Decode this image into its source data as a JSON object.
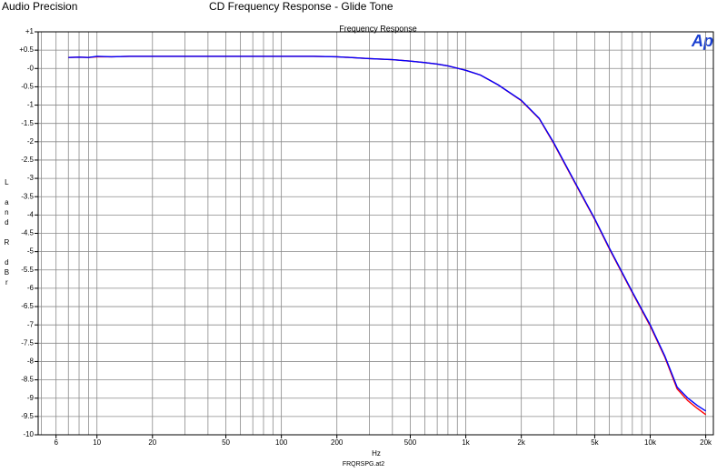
{
  "chart_data": {
    "type": "line",
    "header": "Audio Precision",
    "title": "CD Frequency Response - Glide Tone",
    "subtitle": "Frequency Response",
    "logo": "Ap",
    "ylabel": "L and R dBr",
    "xlabel": "Hz",
    "footnote": "FRQRSPG.at2",
    "xlog": true,
    "grid": true,
    "x": [
      7,
      8,
      9,
      10,
      12,
      15,
      20,
      30,
      50,
      70,
      100,
      150,
      200,
      300,
      400,
      500,
      600,
      700,
      800,
      1000,
      1200,
      1500,
      2000,
      2500,
      3000,
      4000,
      5000,
      6000,
      8000,
      10000,
      12000,
      14000,
      16000,
      18000,
      20000
    ],
    "series": [
      {
        "color": "#ff0000",
        "values": [
          0.3,
          0.31,
          0.3,
          0.32,
          0.32,
          0.33,
          0.33,
          0.33,
          0.33,
          0.33,
          0.33,
          0.33,
          0.32,
          0.27,
          0.24,
          0.2,
          0.16,
          0.12,
          0.07,
          -0.05,
          -0.18,
          -0.45,
          -0.88,
          -1.37,
          -2.05,
          -3.22,
          -4.12,
          -4.92,
          -6.12,
          -7.03,
          -7.88,
          -8.75,
          -9.07,
          -9.28,
          -9.45
        ]
      },
      {
        "color": "#0000ff",
        "values": [
          0.3,
          0.31,
          0.3,
          0.33,
          0.32,
          0.33,
          0.33,
          0.33,
          0.33,
          0.33,
          0.33,
          0.33,
          0.32,
          0.27,
          0.24,
          0.2,
          0.16,
          0.12,
          0.07,
          -0.05,
          -0.18,
          -0.45,
          -0.87,
          -1.36,
          -2.03,
          -3.2,
          -4.1,
          -4.9,
          -6.1,
          -7.0,
          -7.85,
          -8.7,
          -9.0,
          -9.2,
          -9.35
        ]
      }
    ],
    "xlim": [
      4.8,
      22000
    ],
    "xticks": [
      6,
      10,
      20,
      50,
      100,
      200,
      500,
      {
        "value": 1000,
        "label": "1k"
      },
      {
        "value": 2000,
        "label": "2k"
      },
      {
        "value": 5000,
        "label": "5k"
      },
      {
        "value": 10000,
        "label": "10k"
      },
      {
        "value": 20000,
        "label": "20k"
      }
    ],
    "ylim": [
      -10,
      1
    ],
    "yticks": [
      {
        "value": 1,
        "label": "+1"
      },
      {
        "value": 0.5,
        "label": "+0.5"
      },
      {
        "value": 0,
        "label": "-0"
      },
      -0.5,
      -1,
      -1.5,
      -2,
      -2.5,
      -3,
      -3.5,
      -4,
      -4.5,
      -5,
      -5.5,
      -6,
      -6.5,
      -7,
      -7.5,
      -8,
      -8.5,
      -9,
      -9.5,
      -10
    ]
  }
}
